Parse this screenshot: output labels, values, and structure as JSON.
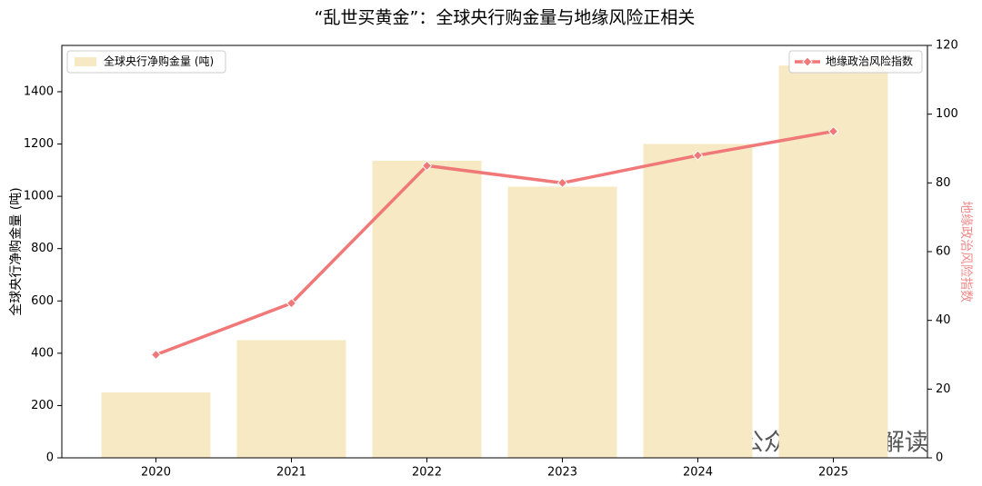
{
  "chart_data": {
    "type": "bar",
    "title": "“乱世买黄金”：全球央行购金量与地缘风险正相关",
    "categories": [
      "2020",
      "2021",
      "2022",
      "2023",
      "2024",
      "2025"
    ],
    "series": [
      {
        "name": "全球央行净购金量 (吨)",
        "type": "bar",
        "color": "#f6e9c3",
        "values": [
          250,
          450,
          1136,
          1037,
          1200,
          1500
        ]
      },
      {
        "name": "地缘政治风险指数",
        "type": "line",
        "axis": "y2",
        "color": "#f07878",
        "values": [
          30,
          45,
          85,
          80,
          88,
          95
        ]
      }
    ],
    "ylabel": "全球央行净购金量 (吨)",
    "y2label": "地缘政治风险指数",
    "y2label_color": "#f08a8a",
    "ylim": [
      0,
      1577
    ],
    "yticks": [
      0,
      200,
      400,
      600,
      800,
      1000,
      1200,
      1400
    ],
    "y2lim": [
      0,
      120
    ],
    "y2ticks": [
      0,
      20,
      40,
      60,
      80,
      100,
      120
    ],
    "legend": [
      "upper left",
      "upper right"
    ],
    "watermark": "公众号 · 批见解读"
  }
}
